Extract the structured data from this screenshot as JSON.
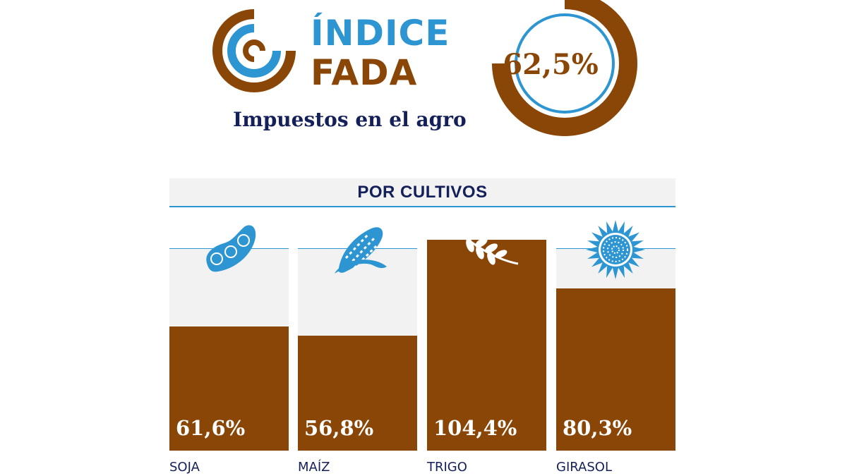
{
  "header": {
    "brand_line1": "ÍNDICE",
    "brand_line2": "FADA",
    "subtitle": "Impuestos en el agro",
    "total_label": "62,5%",
    "total_value": 62.5
  },
  "colors": {
    "brown": "#8a4606",
    "blue": "#2e95d3",
    "navy": "#14205a",
    "band": "#f2f2f2"
  },
  "icons": [
    "soy-pod-icon",
    "corn-cob-icon",
    "wheat-icon",
    "sunflower-icon"
  ],
  "chart_data": {
    "type": "bar",
    "title": "POR CULTIVOS",
    "categories": [
      "SOJA",
      "MAÍZ",
      "TRIGO",
      "GIRASOL"
    ],
    "values": [
      61.6,
      56.8,
      104.4,
      80.3
    ],
    "value_labels": [
      "61,6%",
      "56,8%",
      "104,4%",
      "80,3%"
    ],
    "ylim": [
      0,
      104.4
    ],
    "grid": false,
    "legend": "none"
  }
}
